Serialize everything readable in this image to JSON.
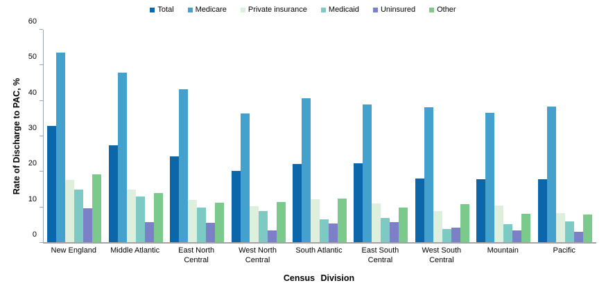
{
  "chart_data": {
    "type": "bar",
    "title": "",
    "xlabel": "Census Division",
    "ylabel": "Rate of Discharge to PAC, %",
    "ylim": [
      0,
      60
    ],
    "yticks": [
      0,
      10,
      20,
      30,
      40,
      50,
      60
    ],
    "grid": false,
    "legend_position": "top",
    "categories": [
      "New England",
      "Middle Atlantic",
      "East North Central",
      "West North Central",
      "South Atlantic",
      "East South Central",
      "West South Central",
      "Mountain",
      "Pacific"
    ],
    "series": [
      {
        "name": "Total",
        "color": "#0B67AA",
        "values": [
          32.9,
          27.4,
          24.4,
          20.2,
          22.3,
          22.5,
          18.1,
          17.9,
          17.9
        ]
      },
      {
        "name": "Medicare",
        "color": "#44A1CD",
        "values": [
          53.5,
          47.9,
          43.3,
          36.5,
          40.7,
          38.9,
          38.1,
          36.6,
          38.3
        ]
      },
      {
        "name": "Private insurance",
        "color": "#DEF0DD",
        "values": [
          17.8,
          15.0,
          12.0,
          10.4,
          12.2,
          11.1,
          8.9,
          10.5,
          8.4
        ]
      },
      {
        "name": "Medicaid",
        "color": "#7DCAC4",
        "values": [
          15.1,
          13.1,
          9.9,
          8.9,
          6.6,
          7.1,
          3.9,
          5.2,
          6.1
        ]
      },
      {
        "name": "Uninsured",
        "color": "#7B80C7",
        "values": [
          9.7,
          5.8,
          5.7,
          3.6,
          5.4,
          5.8,
          4.2,
          3.5,
          3.1
        ]
      },
      {
        "name": "Other",
        "color": "#7BCA8C",
        "values": [
          19.2,
          14.1,
          11.3,
          11.6,
          12.4,
          10.0,
          10.9,
          8.2,
          8.0
        ]
      }
    ]
  }
}
